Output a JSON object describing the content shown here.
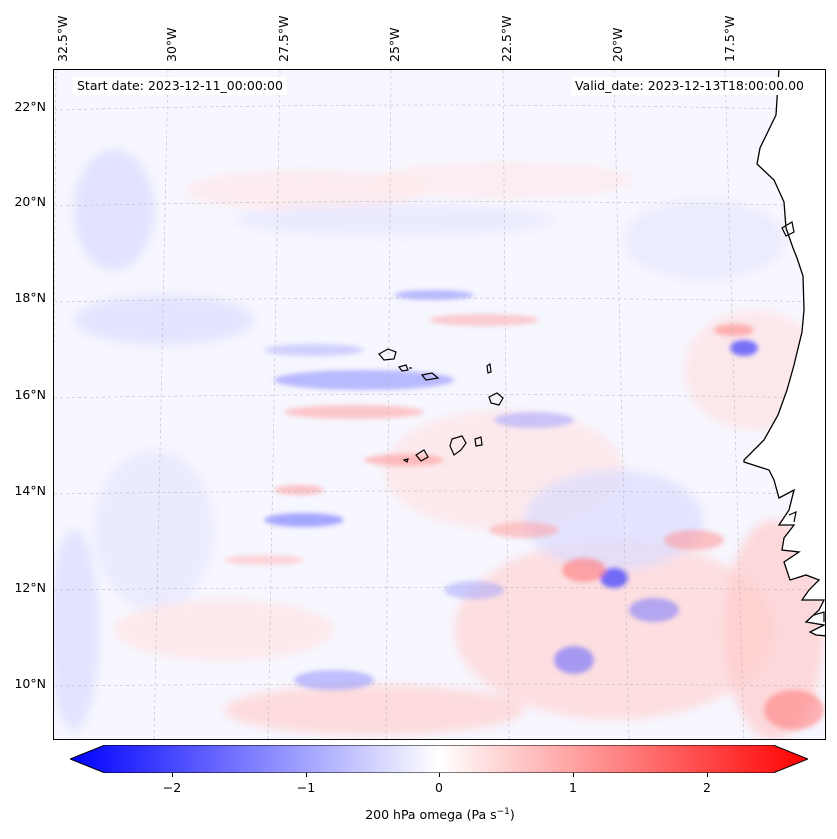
{
  "map": {
    "start_date": "Start date: 2023-12-11_00:00:00",
    "valid_date": "Valid_date: 2023-12-13T18:00:00.00",
    "lon_ticks": [
      "32.5°W",
      "30°W",
      "27.5°W",
      "25°W",
      "22.5°W",
      "20°W",
      "17.5°W"
    ],
    "lat_ticks": [
      "22°N",
      "20°N",
      "18°N",
      "16°N",
      "14°N",
      "12°N",
      "10°N"
    ],
    "land_color": "#ffffff",
    "coast_color": "#000000"
  },
  "colorbar": {
    "label": "200 hPa omega (Pa s",
    "label_sup": "−1",
    "label_close": ")",
    "ticks": [
      "−2",
      "−1",
      "0",
      "1",
      "2"
    ],
    "tick_values": [
      -2,
      -1,
      0,
      1,
      2
    ],
    "range": [
      -2.5,
      2.5
    ],
    "cmap_low": "#0000ff",
    "cmap_mid": "#ffffff",
    "cmap_high": "#ff0000"
  }
}
